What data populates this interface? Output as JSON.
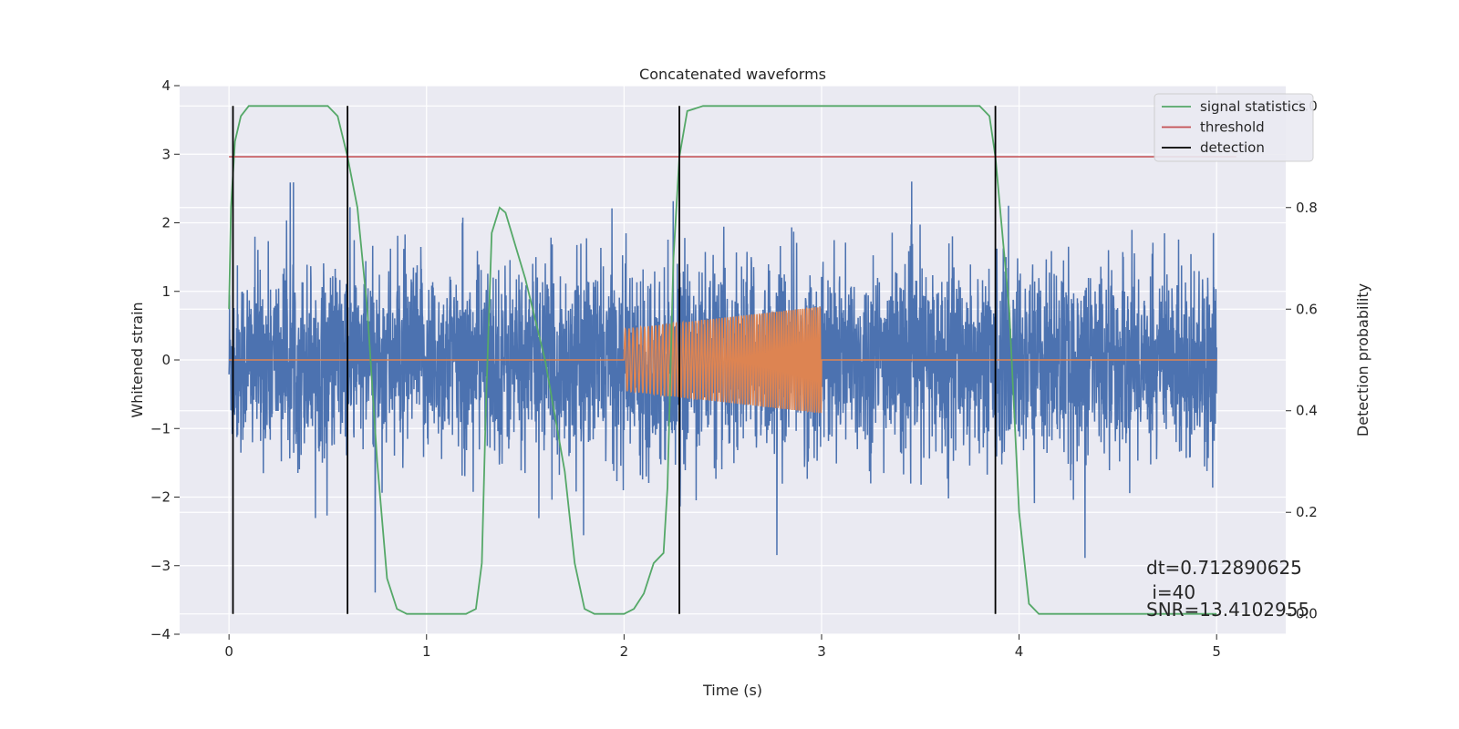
{
  "chart_data": {
    "type": "line",
    "title": "Concatenated waveforms",
    "xlabel": "Time (s)",
    "ylabel": "Whitened strain",
    "ylabel_right": "Detection probability",
    "xlim": [
      -0.25,
      5.35
    ],
    "ylim": [
      -4,
      4
    ],
    "ylim_right": [
      -0.04,
      1.04
    ],
    "x_ticks": [
      0,
      1,
      2,
      3,
      4,
      5
    ],
    "y_ticks": [
      -4,
      -3,
      -2,
      -1,
      0,
      1,
      2,
      3,
      4
    ],
    "y_ticks_right": [
      0.0,
      0.2,
      0.4,
      0.6,
      0.8,
      1.0
    ],
    "x_tick_labels": [
      "0",
      "1",
      "2",
      "3",
      "4",
      "5"
    ],
    "y_tick_labels": [
      "−4",
      "−3",
      "−2",
      "−1",
      "0",
      "1",
      "2",
      "3",
      "4"
    ],
    "y_tick_labels_right": [
      "0.0",
      "0.2",
      "0.4",
      "0.6",
      "0.8",
      "1.0"
    ],
    "grid": true,
    "legend_position": "top-right",
    "legend": [
      {
        "label": "signal statistics",
        "color": "#55a868"
      },
      {
        "label": "threshold",
        "color": "#c44e52"
      },
      {
        "label": "detection",
        "color": "#000000"
      }
    ],
    "colors": {
      "background": "#eaeaf2",
      "noise": "#4c72b0",
      "chirp": "#dd8452",
      "signal_statistics": "#55a868",
      "threshold": "#c44e52",
      "detection": "#000000"
    },
    "series": [
      {
        "name": "signal statistics",
        "axis": "right",
        "points": [
          [
            0.0,
            0.6
          ],
          [
            0.01,
            0.8
          ],
          [
            0.03,
            0.93
          ],
          [
            0.06,
            0.98
          ],
          [
            0.1,
            1.0
          ],
          [
            0.3,
            1.0
          ],
          [
            0.5,
            1.0
          ],
          [
            0.55,
            0.98
          ],
          [
            0.6,
            0.9
          ],
          [
            0.65,
            0.8
          ],
          [
            0.7,
            0.6
          ],
          [
            0.75,
            0.3
          ],
          [
            0.8,
            0.07
          ],
          [
            0.85,
            0.01
          ],
          [
            0.9,
            0.0
          ],
          [
            1.2,
            0.0
          ],
          [
            1.25,
            0.01
          ],
          [
            1.28,
            0.1
          ],
          [
            1.3,
            0.4
          ],
          [
            1.33,
            0.75
          ],
          [
            1.37,
            0.8
          ],
          [
            1.4,
            0.79
          ],
          [
            1.5,
            0.66
          ],
          [
            1.6,
            0.5
          ],
          [
            1.7,
            0.28
          ],
          [
            1.75,
            0.1
          ],
          [
            1.8,
            0.01
          ],
          [
            1.85,
            0.0
          ],
          [
            2.0,
            0.0
          ],
          [
            2.05,
            0.01
          ],
          [
            2.1,
            0.04
          ],
          [
            2.15,
            0.1
          ],
          [
            2.2,
            0.12
          ],
          [
            2.22,
            0.25
          ],
          [
            2.25,
            0.7
          ],
          [
            2.28,
            0.9
          ],
          [
            2.32,
            0.99
          ],
          [
            2.4,
            1.0
          ],
          [
            2.6,
            1.0
          ],
          [
            2.8,
            1.0
          ],
          [
            3.0,
            1.0
          ],
          [
            3.8,
            1.0
          ],
          [
            3.85,
            0.98
          ],
          [
            3.88,
            0.9
          ],
          [
            3.95,
            0.6
          ],
          [
            4.0,
            0.2
          ],
          [
            4.05,
            0.02
          ],
          [
            4.1,
            0.0
          ],
          [
            5.0,
            0.0
          ]
        ]
      },
      {
        "name": "threshold",
        "axis": "right",
        "points": [
          [
            0.0,
            0.9
          ],
          [
            5.1,
            0.9
          ]
        ]
      }
    ],
    "detections": [
      0.02,
      0.6,
      2.28,
      3.88
    ],
    "detection_range": [
      0.0,
      1.0
    ],
    "noise": {
      "x_range": [
        0.0,
        5.0
      ],
      "amplitude_scale": 1.0
    },
    "chirp": {
      "x_range": [
        2.0,
        3.0
      ],
      "amplitude_start": 0.45,
      "amplitude_end": 0.78
    }
  },
  "annotations": {
    "dt": "dt=0.712890625",
    "i": " i=40",
    "snr": "SNR=13.4102955"
  }
}
